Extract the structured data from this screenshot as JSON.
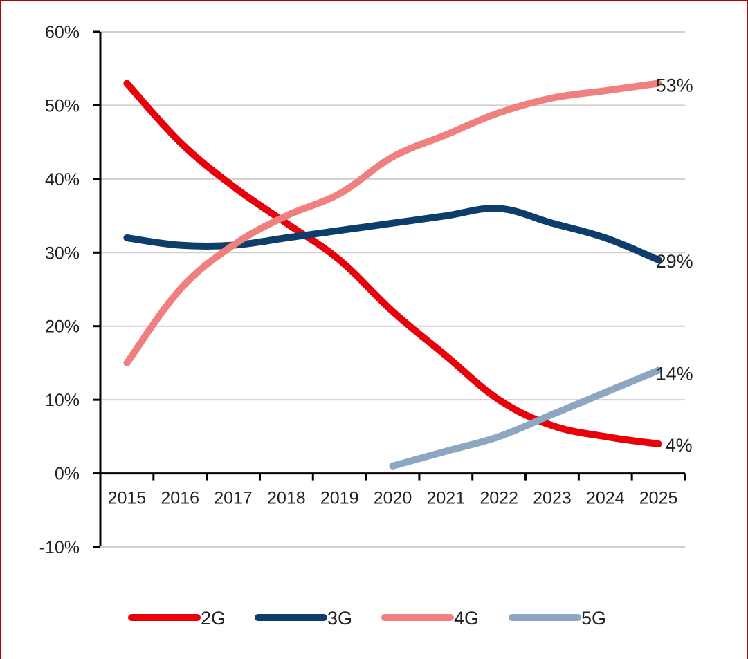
{
  "chart_data": {
    "type": "line",
    "title": "",
    "xlabel": "",
    "ylabel": "",
    "x": [
      "2015",
      "2016",
      "2017",
      "2018",
      "2019",
      "2020",
      "2021",
      "2022",
      "2023",
      "2024",
      "2025"
    ],
    "ylim": [
      -10,
      60
    ],
    "yticks": [
      -10,
      0,
      10,
      20,
      30,
      40,
      50,
      60
    ],
    "ytick_labels": [
      "-10%",
      "0%",
      "10%",
      "20%",
      "30%",
      "40%",
      "50%",
      "60%"
    ],
    "grid": true,
    "legend_position": "bottom",
    "series": [
      {
        "name": "2G",
        "color": "#e8000b",
        "values": [
          53,
          45,
          39,
          34,
          29,
          22,
          16,
          10,
          6.5,
          5,
          4
        ],
        "end_label": "4%"
      },
      {
        "name": "3G",
        "color": "#0c3d6b",
        "values": [
          32,
          31,
          31,
          32,
          33,
          34,
          35,
          36,
          34,
          32,
          29
        ],
        "end_label": "29%"
      },
      {
        "name": "4G",
        "color": "#f08080",
        "values": [
          15,
          25,
          31,
          35,
          38,
          43,
          46,
          49,
          51,
          52,
          53
        ],
        "end_label": "53%"
      },
      {
        "name": "5G",
        "color": "#8ca7bf",
        "values": [
          null,
          null,
          null,
          null,
          null,
          1,
          3,
          5,
          8,
          11,
          14
        ],
        "end_label": "14%"
      }
    ]
  }
}
